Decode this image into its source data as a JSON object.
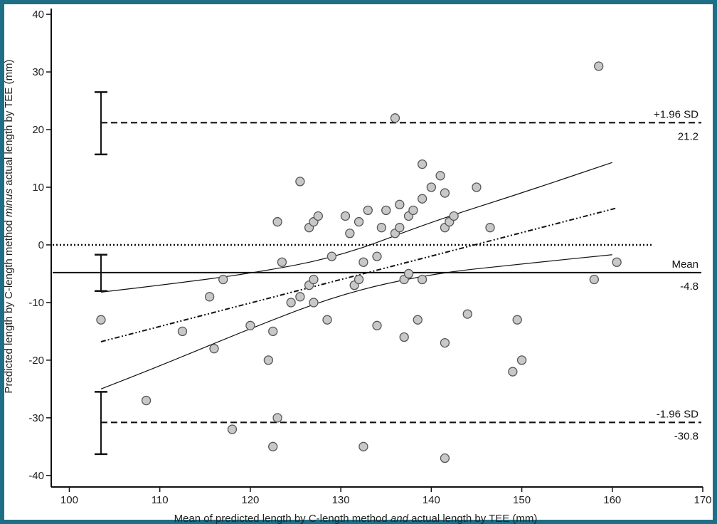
{
  "chart_data": {
    "type": "scatter",
    "title": "",
    "xlabel_parts": [
      "Mean of predicted length by C-length method ",
      "and",
      " actual length by TEE (mm)"
    ],
    "ylabel_parts": [
      "Predicted length by C-length method ",
      "minus",
      " actual length by TEE (mm)"
    ],
    "xlim": [
      98,
      170
    ],
    "ylim": [
      -42,
      41
    ],
    "xticks": [
      100,
      110,
      120,
      130,
      140,
      150,
      160,
      170
    ],
    "yticks": [
      -40,
      -30,
      -20,
      -10,
      0,
      10,
      20,
      30,
      40
    ],
    "grid": false,
    "points": [
      [
        103.5,
        -13
      ],
      [
        108.5,
        -27
      ],
      [
        112.5,
        -15
      ],
      [
        115.5,
        -9
      ],
      [
        116,
        -18
      ],
      [
        117,
        -6
      ],
      [
        118,
        -32
      ],
      [
        120,
        -14
      ],
      [
        122,
        -20
      ],
      [
        122.5,
        -15
      ],
      [
        122.5,
        -35
      ],
      [
        123,
        4
      ],
      [
        123,
        -30
      ],
      [
        123.5,
        -3
      ],
      [
        124.5,
        -10
      ],
      [
        125.5,
        11
      ],
      [
        125.5,
        -9
      ],
      [
        126.5,
        3
      ],
      [
        126.5,
        -7
      ],
      [
        127,
        4
      ],
      [
        127,
        -6
      ],
      [
        127,
        -10
      ],
      [
        127.5,
        5
      ],
      [
        128.5,
        -13
      ],
      [
        129,
        -2
      ],
      [
        130.5,
        5
      ],
      [
        131,
        2
      ],
      [
        131.5,
        -7
      ],
      [
        132,
        4
      ],
      [
        132,
        -6
      ],
      [
        132.5,
        -3
      ],
      [
        132.5,
        -35
      ],
      [
        133,
        6
      ],
      [
        134,
        -2
      ],
      [
        134,
        -14
      ],
      [
        134.5,
        3
      ],
      [
        135,
        6
      ],
      [
        136,
        22
      ],
      [
        136,
        2
      ],
      [
        136.5,
        7
      ],
      [
        136.5,
        3
      ],
      [
        137,
        -6
      ],
      [
        137,
        -16
      ],
      [
        137.5,
        5
      ],
      [
        137.5,
        -5
      ],
      [
        138,
        6
      ],
      [
        138.5,
        -13
      ],
      [
        139,
        14
      ],
      [
        139,
        8
      ],
      [
        139,
        -6
      ],
      [
        140,
        10
      ],
      [
        141,
        12
      ],
      [
        141.5,
        9
      ],
      [
        141.5,
        3
      ],
      [
        141.5,
        -17
      ],
      [
        141.5,
        -37
      ],
      [
        142,
        4
      ],
      [
        142.5,
        5
      ],
      [
        144,
        -12
      ],
      [
        145,
        10
      ],
      [
        146.5,
        3
      ],
      [
        149,
        -22
      ],
      [
        149.5,
        -13
      ],
      [
        150,
        -20
      ],
      [
        158,
        -6
      ],
      [
        158.5,
        31
      ],
      [
        160.5,
        -3
      ]
    ],
    "reference_lines": {
      "mean": {
        "value": -4.8,
        "name": "Mean",
        "value_label": "-4.8"
      },
      "upper_loa": {
        "value": 21.2,
        "name": "+1.96 SD",
        "value_label": "21.2"
      },
      "lower_loa": {
        "value": -30.8,
        "name": "-1.96 SD",
        "value_label": "-30.8"
      },
      "zero": {
        "value": 0
      }
    },
    "confidence_intervals_at_x": 103.5,
    "confidence_intervals": [
      {
        "line": "upper_loa",
        "low": 15.7,
        "high": 26.5
      },
      {
        "line": "mean",
        "low": -8,
        "high": -1.7
      },
      {
        "line": "lower_loa",
        "low": -36.3,
        "high": -25.5
      }
    ],
    "regression": {
      "line": {
        "x": [
          103.5,
          160.5
        ],
        "y": [
          -16.8,
          6.4
        ]
      },
      "ci_upper": [
        [
          103.5,
          -8.2
        ],
        [
          110,
          -7
        ],
        [
          120,
          -5
        ],
        [
          130,
          -2
        ],
        [
          140,
          4
        ],
        [
          150,
          9
        ],
        [
          160,
          14.3
        ]
      ],
      "ci_lower": [
        [
          103.5,
          -25
        ],
        [
          110,
          -21
        ],
        [
          120,
          -14.5
        ],
        [
          130,
          -8.5
        ],
        [
          140,
          -5
        ],
        [
          150,
          -3.3
        ],
        [
          160,
          -1.7
        ]
      ]
    },
    "colors": {
      "marker_fill": "#c8c8c8",
      "marker_edge": "#555555",
      "line": "#111111",
      "frame": "#1d6f86"
    }
  }
}
